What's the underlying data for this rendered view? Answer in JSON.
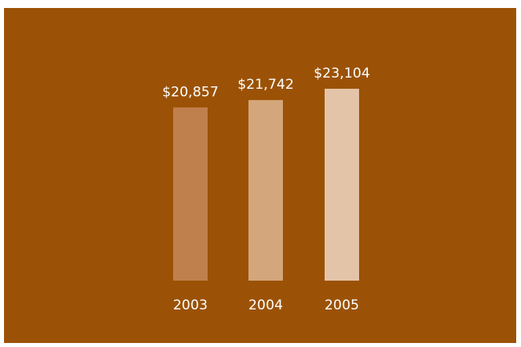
{
  "chart_data": {
    "type": "bar",
    "title": "",
    "xlabel": "",
    "ylabel": "",
    "categories": [
      "2003",
      "2004",
      "2005"
    ],
    "values": [
      20857,
      21742,
      23104
    ],
    "value_labels": [
      "$20,857",
      "$21,742",
      "$23,104"
    ],
    "bar_colors": [
      "#c0804d",
      "#d4a67b",
      "#e4c4a8"
    ],
    "ylim": [
      0,
      23104
    ],
    "grid": false,
    "legend": "none"
  },
  "colors": {
    "background": "#9b5206",
    "text": "#ffffff"
  }
}
